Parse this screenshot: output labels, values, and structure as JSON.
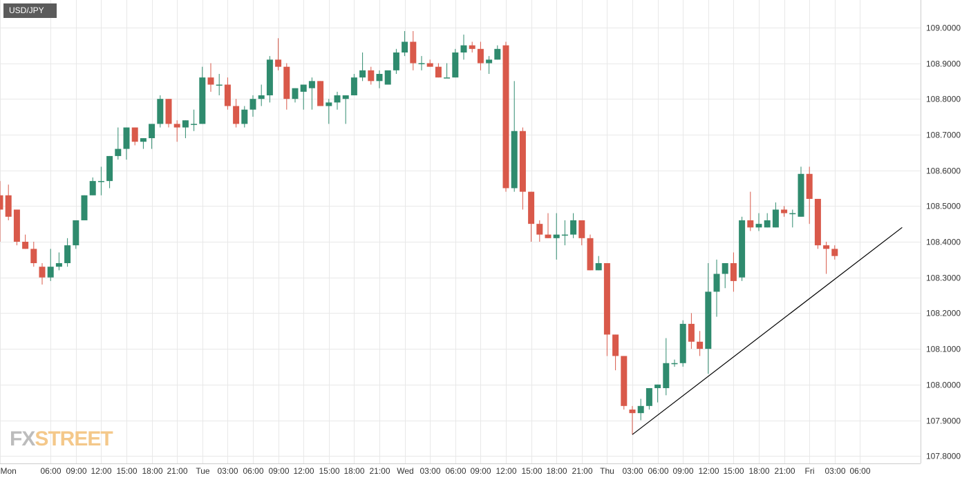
{
  "chart_data": {
    "type": "candlestick",
    "symbol": "USD/JPY",
    "interval_hours": 1,
    "x_axis": {
      "labels": [
        "Mon",
        "06:00",
        "09:00",
        "12:00",
        "15:00",
        "18:00",
        "21:00",
        "Tue",
        "03:00",
        "06:00",
        "09:00",
        "12:00",
        "15:00",
        "18:00",
        "21:00",
        "Wed",
        "03:00",
        "06:00",
        "09:00",
        "12:00",
        "15:00",
        "18:00",
        "21:00",
        "Thu",
        "03:00",
        "06:00",
        "09:00",
        "12:00",
        "15:00",
        "18:00",
        "21:00",
        "Fri",
        "03:00",
        "06:00"
      ],
      "label_bar_index": [
        0,
        6,
        9,
        12,
        15,
        18,
        21,
        24,
        27,
        30,
        33,
        36,
        39,
        42,
        45,
        48,
        51,
        54,
        57,
        60,
        63,
        66,
        69,
        72,
        75,
        78,
        81,
        84,
        87,
        90,
        93,
        96,
        99,
        102
      ]
    },
    "y_axis": {
      "ylim": [
        107.78,
        109.07
      ],
      "tick_values": [
        109.0,
        108.9,
        108.8,
        108.7,
        108.6,
        108.5,
        108.4,
        108.3,
        108.2,
        108.1,
        108.0,
        107.9,
        107.8
      ],
      "tick_labels": [
        "109.0000",
        "108.9000",
        "108.8000",
        "108.7000",
        "108.6000",
        "108.5000",
        "108.4000",
        "108.3000",
        "108.2000",
        "108.1000",
        "108.0000",
        "107.9000",
        "107.8000"
      ]
    },
    "candles": [
      [
        108.53,
        108.57,
        108.4,
        108.49
      ],
      [
        108.53,
        108.56,
        108.46,
        108.47
      ],
      [
        108.49,
        108.49,
        108.39,
        108.4
      ],
      [
        108.4,
        108.42,
        108.38,
        108.38
      ],
      [
        108.38,
        108.4,
        108.33,
        108.34
      ],
      [
        108.33,
        108.34,
        108.28,
        108.3
      ],
      [
        108.3,
        108.38,
        108.29,
        108.33
      ],
      [
        108.33,
        108.37,
        108.32,
        108.34
      ],
      [
        108.34,
        108.41,
        108.33,
        108.39
      ],
      [
        108.39,
        108.46,
        108.38,
        108.46
      ],
      [
        108.46,
        108.53,
        108.46,
        108.53
      ],
      [
        108.53,
        108.58,
        108.53,
        108.57
      ],
      [
        108.57,
        108.61,
        108.53,
        108.57
      ],
      [
        108.57,
        108.64,
        108.55,
        108.64
      ],
      [
        108.64,
        108.72,
        108.63,
        108.66
      ],
      [
        108.66,
        108.72,
        108.63,
        108.72
      ],
      [
        108.72,
        108.72,
        108.67,
        108.68
      ],
      [
        108.68,
        108.69,
        108.66,
        108.69
      ],
      [
        108.69,
        108.73,
        108.66,
        108.73
      ],
      [
        108.73,
        108.81,
        108.72,
        108.8
      ],
      [
        108.8,
        108.8,
        108.72,
        108.73
      ],
      [
        108.73,
        108.74,
        108.68,
        108.72
      ],
      [
        108.72,
        108.74,
        108.69,
        108.74
      ],
      [
        108.73,
        108.77,
        108.71,
        108.73
      ],
      [
        108.73,
        108.89,
        108.73,
        108.86
      ],
      [
        108.86,
        108.9,
        108.82,
        108.84
      ],
      [
        108.84,
        108.87,
        108.81,
        108.84
      ],
      [
        108.84,
        108.86,
        108.77,
        108.78
      ],
      [
        108.78,
        108.8,
        108.72,
        108.73
      ],
      [
        108.73,
        108.78,
        108.72,
        108.77
      ],
      [
        108.77,
        108.81,
        108.75,
        108.8
      ],
      [
        108.8,
        108.84,
        108.78,
        108.81
      ],
      [
        108.81,
        108.92,
        108.79,
        108.91
      ],
      [
        108.91,
        108.97,
        108.88,
        108.89
      ],
      [
        108.89,
        108.9,
        108.77,
        108.8
      ],
      [
        108.8,
        108.83,
        108.79,
        108.83
      ],
      [
        108.82,
        108.84,
        108.77,
        108.84
      ],
      [
        108.83,
        108.86,
        108.77,
        108.85
      ],
      [
        108.85,
        108.85,
        108.78,
        108.78
      ],
      [
        108.78,
        108.8,
        108.73,
        108.79
      ],
      [
        108.79,
        108.82,
        108.77,
        108.81
      ],
      [
        108.8,
        108.81,
        108.73,
        108.81
      ],
      [
        108.81,
        108.87,
        108.81,
        108.86
      ],
      [
        108.86,
        108.93,
        108.85,
        108.88
      ],
      [
        108.88,
        108.89,
        108.84,
        108.85
      ],
      [
        108.85,
        108.88,
        108.83,
        108.87
      ],
      [
        108.84,
        108.87,
        108.85,
        108.88
      ],
      [
        108.88,
        108.94,
        108.87,
        108.93
      ],
      [
        108.93,
        108.99,
        108.92,
        108.96
      ],
      [
        108.96,
        108.99,
        108.88,
        108.9
      ],
      [
        108.9,
        108.92,
        108.88,
        108.9
      ],
      [
        108.9,
        108.91,
        108.89,
        108.89
      ],
      [
        108.89,
        108.9,
        108.86,
        108.86
      ],
      [
        108.86,
        108.9,
        108.86,
        108.86
      ],
      [
        108.86,
        108.94,
        108.86,
        108.93
      ],
      [
        108.93,
        108.98,
        108.91,
        108.95
      ],
      [
        108.95,
        108.96,
        108.93,
        108.94
      ],
      [
        108.94,
        108.96,
        108.88,
        108.9
      ],
      [
        108.9,
        108.92,
        108.87,
        108.91
      ],
      [
        108.91,
        108.95,
        108.91,
        108.94
      ],
      [
        108.95,
        108.96,
        108.54,
        108.55
      ],
      [
        108.55,
        108.85,
        108.54,
        108.71
      ],
      [
        108.71,
        108.72,
        108.49,
        108.54
      ],
      [
        108.54,
        108.54,
        108.4,
        108.45
      ],
      [
        108.45,
        108.46,
        108.4,
        108.42
      ],
      [
        108.42,
        108.48,
        108.41,
        108.41
      ],
      [
        108.41,
        108.48,
        108.35,
        108.42
      ],
      [
        108.42,
        108.46,
        108.39,
        108.42
      ],
      [
        108.42,
        108.48,
        108.41,
        108.46
      ],
      [
        108.46,
        108.46,
        108.39,
        108.41
      ],
      [
        108.41,
        108.42,
        108.32,
        108.32
      ],
      [
        108.32,
        108.36,
        108.32,
        108.34
      ],
      [
        108.34,
        108.34,
        108.08,
        108.14
      ],
      [
        108.14,
        108.14,
        108.04,
        108.08
      ],
      [
        108.08,
        108.08,
        107.93,
        107.94
      ],
      [
        107.93,
        107.94,
        107.86,
        107.92
      ],
      [
        107.92,
        107.96,
        107.9,
        107.94
      ],
      [
        107.94,
        107.99,
        107.93,
        107.99
      ],
      [
        107.99,
        108.0,
        107.95,
        108.0
      ],
      [
        107.99,
        108.13,
        107.97,
        108.06
      ],
      [
        108.06,
        108.07,
        108.05,
        108.06
      ],
      [
        108.06,
        108.18,
        108.05,
        108.17
      ],
      [
        108.17,
        108.2,
        108.1,
        108.12
      ],
      [
        108.12,
        108.15,
        108.08,
        108.1
      ],
      [
        108.1,
        108.34,
        108.03,
        108.26
      ],
      [
        108.26,
        108.35,
        108.19,
        108.31
      ],
      [
        108.31,
        108.34,
        108.27,
        108.34
      ],
      [
        108.34,
        108.37,
        108.26,
        108.29
      ],
      [
        108.3,
        108.47,
        108.29,
        108.46
      ],
      [
        108.46,
        108.54,
        108.43,
        108.44
      ],
      [
        108.44,
        108.48,
        108.43,
        108.45
      ],
      [
        108.44,
        108.48,
        108.44,
        108.46
      ],
      [
        108.44,
        108.51,
        108.44,
        108.49
      ],
      [
        108.49,
        108.5,
        108.47,
        108.48
      ],
      [
        108.48,
        108.49,
        108.44,
        108.48
      ],
      [
        108.47,
        108.61,
        108.47,
        108.59
      ],
      [
        108.59,
        108.61,
        108.45,
        108.52
      ],
      [
        108.52,
        108.52,
        108.38,
        108.39
      ],
      [
        108.39,
        108.4,
        108.31,
        108.38
      ],
      [
        108.38,
        108.39,
        108.35,
        108.36
      ]
    ],
    "trendline": {
      "x1_bar": 75,
      "y1": 107.86,
      "x2_bar": 107,
      "y2": 108.44
    },
    "colors": {
      "up": "#2f8b6e",
      "down": "#d9594a",
      "grid": "#e8e8e8",
      "axis_text": "#333333",
      "trendline": "#000000"
    },
    "grid": true,
    "y_axis_position": "right"
  },
  "symbol_label": "USD/JPY",
  "logo": {
    "part1": "FX",
    "part2": "STREET"
  }
}
